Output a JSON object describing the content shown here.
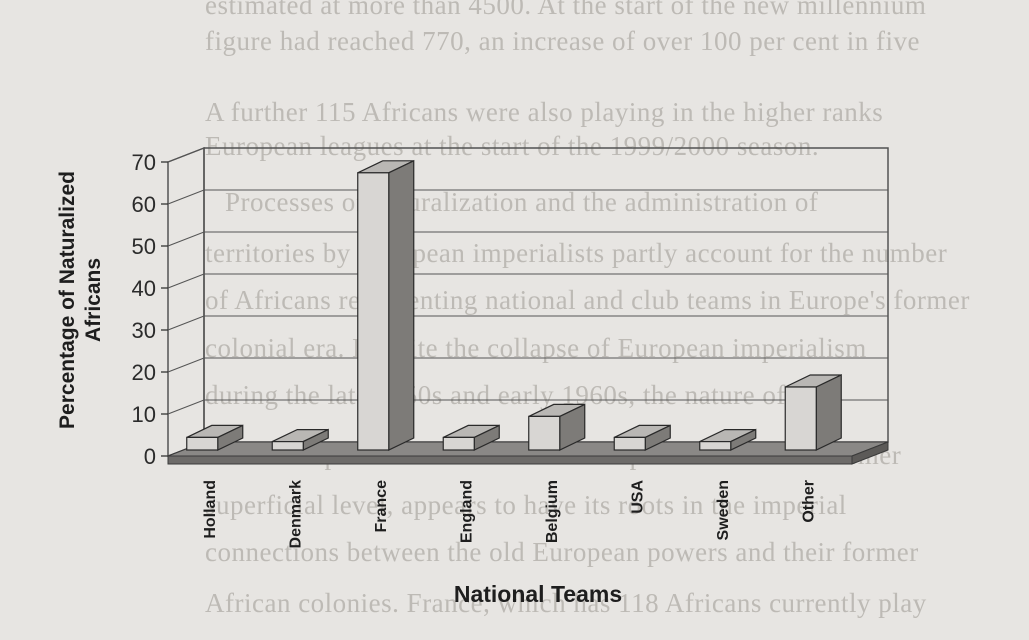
{
  "chart_data": {
    "type": "bar",
    "categories": [
      "Holland",
      "Denmark",
      "France",
      "England",
      "Belgium",
      "USA",
      "Sweden",
      "Other"
    ],
    "values": [
      3,
      2,
      66,
      3,
      8,
      3,
      2,
      15
    ],
    "xlabel": "National Teams",
    "ylabel": "Percentage of Naturalized Africans",
    "ylim": [
      0,
      70
    ],
    "yticks": [
      0,
      10,
      20,
      30,
      40,
      50,
      60,
      70
    ],
    "grid": true,
    "bar_colors": {
      "front": "#d8d6d3",
      "top": "#b9b7b4",
      "side": "#7d7b78"
    },
    "floor_color": "#8a8886"
  },
  "background_text": [
    "estimated at more than 4500. At the start of the new millennium",
    "figure had reached 770, an increase of over 100 per cent in five",
    "A further 115 Africans were also playing in the higher ranks",
    "European leagues at the start of the 1999/2000 season.",
    "Processes of naturalization and the administration of",
    "territories by European imperialists partly account for the number",
    "of Africans representing national and club teams in Europe's former",
    "colonial era. Despite the collapse of European imperialism",
    "during the late 1950s and early 1960s, the nature of the",
    "relationship between the old colonial powers and their former",
    "superficial level, appears to have its roots in the imperial",
    "connections between the old European powers and their former",
    "African colonies. France, which has 118 Africans currently play"
  ]
}
